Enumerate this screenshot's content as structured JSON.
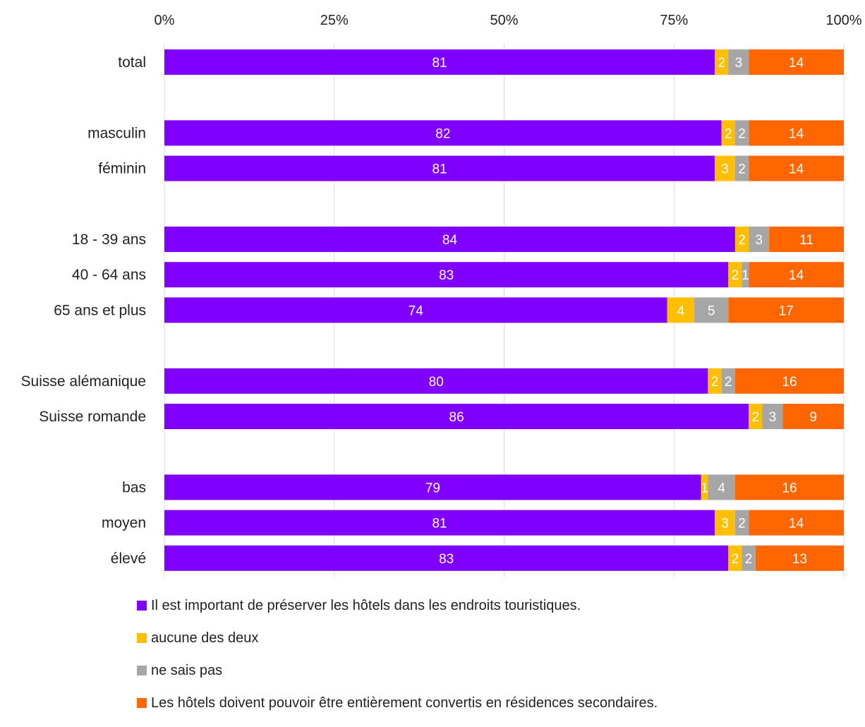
{
  "chart_data": {
    "type": "bar",
    "orientation": "horizontal",
    "stacked": "percent",
    "x_ticks": [
      "0%",
      "25%",
      "50%",
      "75%",
      "100%"
    ],
    "xlim": [
      0,
      100
    ],
    "grid": true,
    "legend_position": "bottom",
    "categories": [
      "total",
      "masculin",
      "féminin",
      "18 - 39 ans",
      "40 - 64 ans",
      "65 ans et plus",
      "Suisse alémanique",
      "Suisse romande",
      "bas",
      "moyen",
      "élevé"
    ],
    "groups": [
      [
        "total"
      ],
      [
        "masculin",
        "féminin"
      ],
      [
        "18 - 39 ans",
        "40 - 64 ans",
        "65 ans et plus"
      ],
      [
        "Suisse alémanique",
        "Suisse romande"
      ],
      [
        "bas",
        "moyen",
        "élevé"
      ]
    ],
    "series": [
      {
        "name": "Il est important de préserver les hôtels dans les endroits touristiques.",
        "color": "#8000ff",
        "values": [
          81,
          82,
          81,
          84,
          83,
          74,
          80,
          86,
          79,
          81,
          83
        ]
      },
      {
        "name": "aucune des deux",
        "color": "#ffbf00",
        "values": [
          2,
          2,
          3,
          2,
          2,
          4,
          2,
          2,
          1,
          3,
          2
        ]
      },
      {
        "name": "ne sais pas",
        "color": "#a6a6a6",
        "values": [
          3,
          2,
          2,
          3,
          1,
          5,
          2,
          3,
          4,
          2,
          2
        ]
      },
      {
        "name": "Les hôtels doivent pouvoir être entièrement convertis en résidences secondaires.",
        "color": "#ff6600",
        "values": [
          14,
          14,
          14,
          11,
          14,
          17,
          16,
          9,
          16,
          14,
          13
        ]
      }
    ]
  }
}
